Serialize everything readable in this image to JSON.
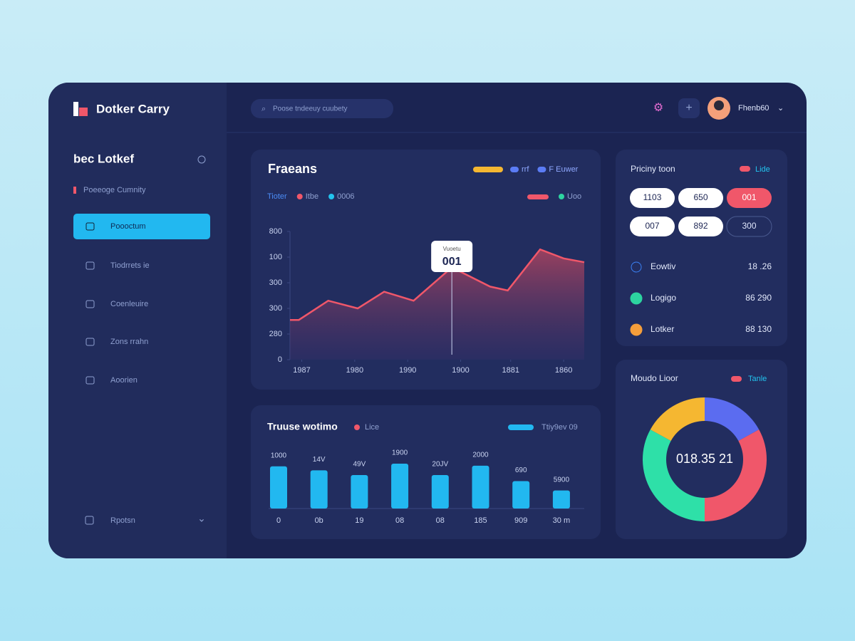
{
  "header": {
    "brand": "Dotker Carry",
    "search": "Poose tndeeuy cuubety",
    "user": "Fhenb60"
  },
  "sidebar": {
    "title": "bec Lotkef",
    "subtitle": "Poeeoge Cumnity",
    "nav": [
      "Poooctum",
      "Tiodrrets ie",
      "Coenleuire",
      "Zons rrahn",
      "Aoorien"
    ],
    "footer": "Rpotsn"
  },
  "pricing": {
    "title": "Priciny toon",
    "legend": "Lide",
    "pills": [
      {
        "text": "1103",
        "style": "light"
      },
      {
        "text": "650",
        "style": "light"
      },
      {
        "text": "001",
        "style": "red"
      },
      {
        "text": "007",
        "style": "light"
      },
      {
        "text": "892",
        "style": "light"
      },
      {
        "text": "300",
        "style": "outline"
      }
    ],
    "rows": [
      {
        "label": "Eowtiv",
        "value": "18 .26",
        "color": "#3b82f6"
      },
      {
        "label": "Logigo",
        "value": "86 290",
        "color": "#2dd4a0"
      },
      {
        "label": "Lotker",
        "value": "88 130",
        "color": "#f59e3b"
      }
    ]
  },
  "chart_data": [
    {
      "type": "area",
      "title": "Fraeans",
      "legend_top": [
        {
          "color": "#f5b731"
        },
        {
          "name": "rrf",
          "color": "#5b7cf5"
        },
        {
          "name": "F Euwer",
          "color": "#5b7cf5"
        }
      ],
      "legend_sub": [
        {
          "name": "Tioter",
          "color": "#4b8cf5"
        },
        {
          "name": "Itbe",
          "color": "#f0576a"
        },
        {
          "name": "0006",
          "color": "#22c3ee"
        },
        {
          "name": "Uoo",
          "color": "#2dd4a0"
        }
      ],
      "x": [
        0,
        3,
        13,
        23,
        32,
        42,
        55,
        68,
        74,
        85,
        93,
        100
      ],
      "values": [
        31,
        31,
        46,
        40,
        53,
        46,
        72,
        57,
        54,
        86,
        79,
        76
      ],
      "color": "#f0576a",
      "xlim": [
        0,
        100
      ],
      "ylim": [
        0,
        100
      ],
      "xticks": [
        {
          "value": 4,
          "label": "1987"
        },
        {
          "value": 22,
          "label": "1980"
        },
        {
          "value": 40,
          "label": "1990"
        },
        {
          "value": 58,
          "label": "1900"
        },
        {
          "value": 75,
          "label": "1881"
        },
        {
          "value": 93,
          "label": "1860"
        }
      ],
      "yticks": [
        0,
        {
          "value": 20,
          "label": "280"
        },
        {
          "value": 40,
          "label": "300"
        },
        {
          "value": 60,
          "label": "300"
        },
        {
          "value": 80,
          "label": "100"
        },
        {
          "value": 100,
          "label": "800"
        }
      ],
      "tooltip": {
        "x": 55,
        "label": "Vuoetu",
        "value": "001"
      }
    },
    {
      "type": "bar",
      "title": "Truuse wotimo",
      "legend": [
        {
          "name": "Lice",
          "color": "#f0576a"
        },
        {
          "name": "Ttiy9ev 09",
          "color": "#22b8f0"
        }
      ],
      "categories": [
        "0",
        "0b",
        "19",
        "08",
        "08",
        "185",
        "909",
        "30 m"
      ],
      "values": [
        63,
        57,
        50,
        67,
        50,
        64,
        41,
        27
      ],
      "annotations": [
        "1000",
        "14V",
        "49V",
        "1900",
        "20JV",
        "2000",
        "690",
        "5900"
      ],
      "color": "#22b8f0",
      "ylim": [
        0,
        100
      ]
    },
    {
      "type": "pie",
      "title": "Moudo Lioor",
      "legend": "Tanle",
      "center_label": "018.35 21",
      "values": [
        17,
        33,
        33,
        17
      ],
      "colors": [
        "#5b6cf0",
        "#f0576a",
        "#2ee0a8",
        "#f5b731"
      ]
    }
  ]
}
